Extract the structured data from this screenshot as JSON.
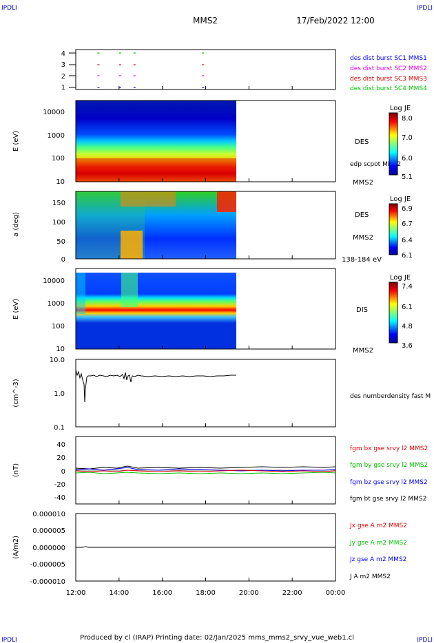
{
  "header": {
    "corner_tl": "IPDLI",
    "corner_tr": "IPDLI",
    "corner_bl": "IPDLI",
    "corner_br": "IPDLI",
    "spacecraft": "MMS2",
    "datetime": "17/Feb/2022 12:00"
  },
  "footer": {
    "text": "Produced by cl (IRAP)   Printing date: 02/Jan/2025   mms_mms2_srvy_vue_web1.cl"
  },
  "colors": {
    "blue": "#0000ff",
    "magenta": "#e000e0",
    "red": "#e00000",
    "green": "#00c000",
    "black": "#000000"
  },
  "chart_data": [
    {
      "panel": "burst",
      "type": "scatter",
      "yticks": [
        "4",
        "3",
        "2",
        "1"
      ],
      "x": [
        "13:00",
        "14:00",
        "14:40",
        "17:50"
      ],
      "legend": [
        "des dist burst SC1 MMS1",
        "des dist burst SC2 MMS2",
        "des dist burst SC3 MMS3",
        "des dist burst SC4 MMS4"
      ]
    },
    {
      "panel": "des_energy",
      "type": "heatmap",
      "ylabel": "E (eV)",
      "yticks": [
        "10000",
        "1000",
        "100",
        "10"
      ],
      "ylim": [
        10,
        30000
      ],
      "log_y": true,
      "data_end": "19:30",
      "side_label": "DES",
      "side_extra": "edp scpot MMS2",
      "instrument": "MMS2",
      "colorbar": {
        "title": "Log JE",
        "ticks": [
          "8.0",
          "7.0",
          "6.0",
          "5.1"
        ]
      }
    },
    {
      "panel": "des_pitch",
      "type": "heatmap",
      "ylabel": "a (deg)",
      "yticks": [
        "150",
        "100",
        "50",
        "0"
      ],
      "ylim": [
        0,
        180
      ],
      "data_end": "19:30",
      "side_label": "DES",
      "instrument": "MMS2",
      "energy_range": "138-184 eV",
      "colorbar": {
        "title": "Log JE",
        "ticks": [
          "6.9",
          "6.7",
          "6.4",
          "6.1"
        ]
      }
    },
    {
      "panel": "dis_energy",
      "type": "heatmap",
      "ylabel": "E (eV)",
      "yticks": [
        "10000",
        "1000",
        "100",
        "10"
      ],
      "ylim": [
        10,
        20000
      ],
      "log_y": true,
      "data_end": "19:30",
      "side_label": "DIS",
      "instrument": "MMS2",
      "colorbar": {
        "title": "Log JE",
        "ticks": [
          "7.4",
          "6.1",
          "4.8",
          "3.6"
        ]
      }
    },
    {
      "panel": "density",
      "type": "line",
      "ylabel": "(cm^-3)",
      "yticks": [
        "10.0",
        "1.0",
        "0.1"
      ],
      "ylim": [
        0.1,
        10
      ],
      "log_y": true,
      "legend": [
        "des numberdensity fast M"
      ]
    },
    {
      "panel": "bfield",
      "type": "line",
      "ylabel": "(nT)",
      "yticks": [
        "40",
        "20",
        "0",
        "-20",
        "-40"
      ],
      "ylim": [
        -50,
        50
      ],
      "legend": [
        "fgm bx gse srvy l2 MMS2",
        "fgm by gse srvy l2 MMS2",
        "fgm bz gse srvy l2 MMS2",
        "fgm bt gse srvy l2 MMS2"
      ]
    },
    {
      "panel": "current",
      "type": "line",
      "ylabel": "(A/m2)",
      "yticks": [
        "0.000010",
        "0.000005",
        "0.000000",
        "-0.000005",
        "-0.000010"
      ],
      "ylim": [
        -1e-05,
        1e-05
      ],
      "legend": [
        "Jx gse A m2 MMS2",
        "Jy gse A m2 MMS2",
        "Jz gse A m2 MMS2",
        "J A m2 MMS2"
      ]
    }
  ],
  "x_axis": {
    "ticks": [
      "12:00",
      "14:00",
      "16:00",
      "18:00",
      "20:00",
      "22:00",
      "00:00"
    ],
    "range": [
      "12:00",
      "00:00"
    ]
  }
}
